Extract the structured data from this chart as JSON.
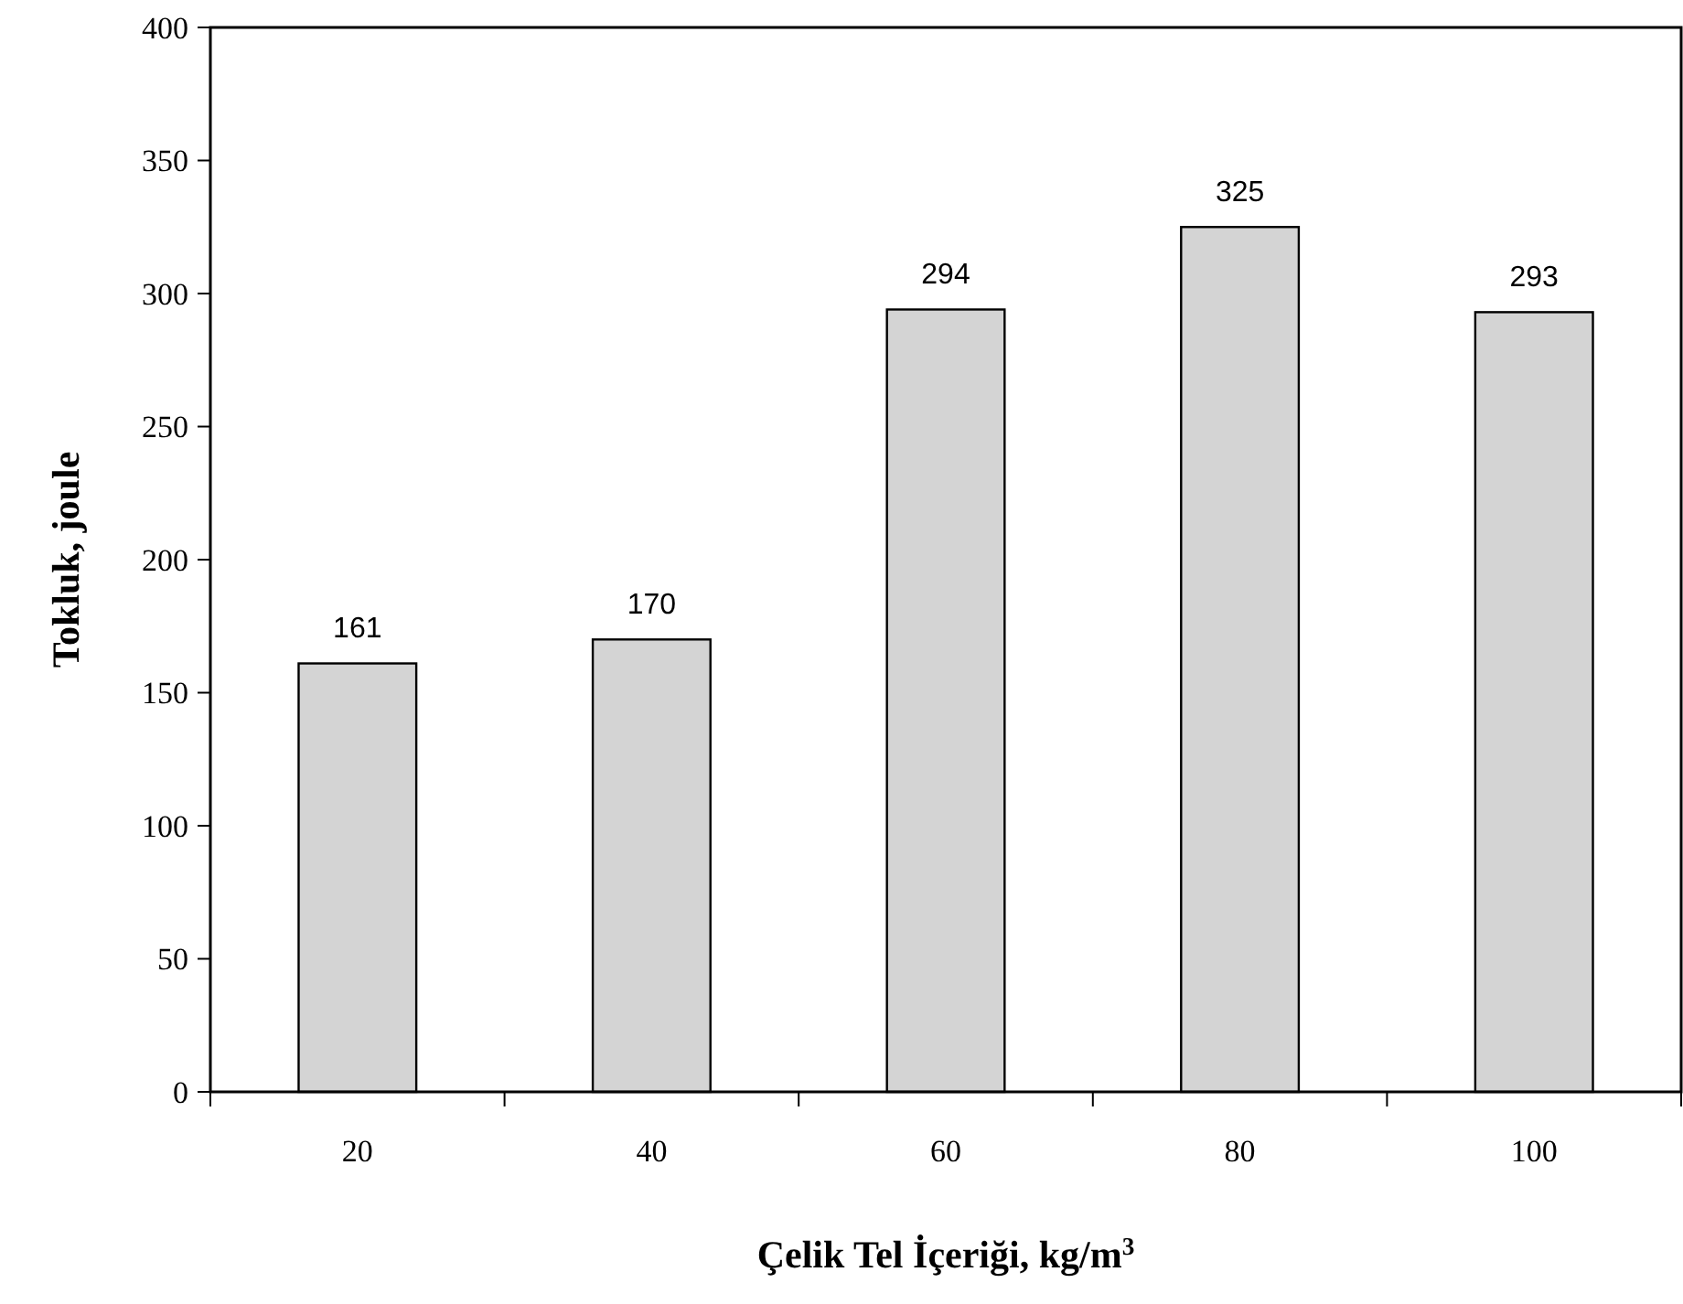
{
  "chart_data": {
    "type": "bar",
    "xlabel": "Çelik Tel İçeriği, kg/m$^{3}$",
    "ylabel": "Tokluk, joule",
    "categories": [
      "20",
      "40",
      "60",
      "80",
      "100"
    ],
    "values": [
      161,
      170,
      294,
      325,
      293
    ],
    "color": "#d4d4d4",
    "ylim": [
      0,
      400
    ],
    "yticks": [
      0,
      50,
      100,
      150,
      200,
      250,
      300,
      350,
      400
    ],
    "data_labels": true
  }
}
